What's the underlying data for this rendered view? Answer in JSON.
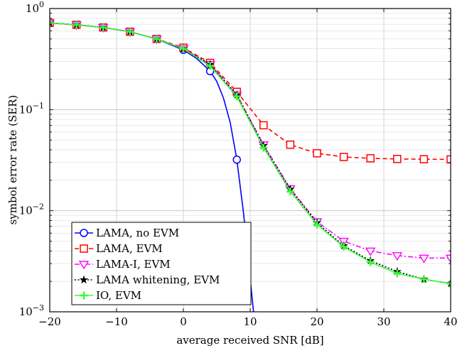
{
  "chart_data": {
    "type": "line",
    "title": "",
    "xlabel": "average received SNR [dB]",
    "ylabel": "symbol error rate (SER)",
    "xlim": [
      -20,
      40
    ],
    "ylim": [
      0.001,
      1
    ],
    "yscale": "log",
    "grid": true,
    "legend_position": "bottom-left",
    "x_ticks": [
      -20,
      -10,
      0,
      10,
      20,
      30,
      40
    ],
    "x_tick_labels": [
      "−20",
      "−10",
      "0",
      "10",
      "20",
      "30",
      "40"
    ],
    "y_ticks": [
      0.001,
      0.01,
      0.1,
      1
    ],
    "y_tick_labels": [
      {
        "base": "10",
        "exp": "−3"
      },
      {
        "base": "10",
        "exp": "−2"
      },
      {
        "base": "10",
        "exp": "−1"
      },
      {
        "base": "10",
        "exp": "0"
      }
    ],
    "series": [
      {
        "name": "LAMA, no EVM",
        "color": "#0000ff",
        "line": "solid",
        "marker": "circle",
        "line_x": [
          -20,
          -16,
          -12,
          -8,
          -4,
          0,
          2,
          4,
          5,
          6,
          7,
          8,
          9,
          10,
          10.5
        ],
        "line_y": [
          0.72,
          0.69,
          0.65,
          0.59,
          0.5,
          0.39,
          0.32,
          0.24,
          0.19,
          0.13,
          0.075,
          0.032,
          0.0095,
          0.0021,
          0.001
        ],
        "marker_x": [
          -20,
          -16,
          -12,
          -8,
          -4,
          0,
          4,
          8
        ],
        "marker_y": [
          0.72,
          0.69,
          0.65,
          0.59,
          0.5,
          0.39,
          0.24,
          0.032
        ]
      },
      {
        "name": "LAMA, EVM",
        "color": "#ff0000",
        "line": "dashed",
        "marker": "square",
        "line_x": [
          -20,
          -16,
          -12,
          -8,
          -4,
          0,
          4,
          8,
          12,
          16,
          20,
          24,
          28,
          32,
          36,
          40
        ],
        "line_y": [
          0.72,
          0.69,
          0.65,
          0.59,
          0.5,
          0.41,
          0.29,
          0.15,
          0.07,
          0.045,
          0.037,
          0.034,
          0.033,
          0.0325,
          0.0323,
          0.0322
        ],
        "marker_x": [
          -20,
          -16,
          -12,
          -8,
          -4,
          0,
          4,
          8,
          12,
          16,
          20,
          24,
          28,
          32,
          36,
          40
        ],
        "marker_y": [
          0.72,
          0.69,
          0.65,
          0.59,
          0.5,
          0.41,
          0.29,
          0.15,
          0.07,
          0.045,
          0.037,
          0.034,
          0.033,
          0.0325,
          0.0323,
          0.0322
        ]
      },
      {
        "name": "LAMA-I, EVM",
        "color": "#ff00ff",
        "line": "dashdot",
        "marker": "triangle-down",
        "line_x": [
          -20,
          -16,
          -12,
          -8,
          -4,
          0,
          4,
          8,
          12,
          16,
          20,
          24,
          28,
          32,
          36,
          40
        ],
        "line_y": [
          0.72,
          0.69,
          0.65,
          0.59,
          0.5,
          0.4,
          0.28,
          0.14,
          0.045,
          0.0165,
          0.0078,
          0.005,
          0.004,
          0.0036,
          0.0034,
          0.0034
        ],
        "marker_x": [
          -20,
          -16,
          -12,
          -8,
          -4,
          0,
          4,
          8,
          12,
          16,
          20,
          24,
          28,
          32,
          36,
          40
        ],
        "marker_y": [
          0.72,
          0.69,
          0.65,
          0.59,
          0.5,
          0.4,
          0.28,
          0.14,
          0.045,
          0.0165,
          0.0078,
          0.005,
          0.004,
          0.0036,
          0.0034,
          0.0034
        ]
      },
      {
        "name": "LAMA whitening, EVM",
        "color": "#000000",
        "line": "dotted",
        "marker": "star",
        "line_x": [
          -20,
          -16,
          -12,
          -8,
          -4,
          0,
          4,
          8,
          12,
          16,
          20,
          24,
          28,
          32,
          36,
          40
        ],
        "line_y": [
          0.72,
          0.69,
          0.65,
          0.59,
          0.5,
          0.4,
          0.28,
          0.14,
          0.044,
          0.0163,
          0.0076,
          0.0045,
          0.0032,
          0.0025,
          0.0021,
          0.0019
        ],
        "marker_x": [
          -20,
          -16,
          -12,
          -8,
          -4,
          0,
          4,
          8,
          12,
          16,
          20,
          24,
          28,
          32,
          36,
          40
        ],
        "marker_y": [
          0.72,
          0.69,
          0.65,
          0.59,
          0.5,
          0.4,
          0.28,
          0.14,
          0.044,
          0.0163,
          0.0076,
          0.0045,
          0.0032,
          0.0025,
          0.0021,
          0.0019
        ]
      },
      {
        "name": "IO, EVM",
        "color": "#33ff33",
        "line": "solid",
        "marker": "plus",
        "line_x": [
          -20,
          -16,
          -12,
          -8,
          -4,
          0,
          4,
          8,
          12,
          16,
          20,
          24,
          28,
          32,
          36,
          40
        ],
        "line_y": [
          0.72,
          0.69,
          0.65,
          0.59,
          0.5,
          0.4,
          0.27,
          0.135,
          0.042,
          0.0155,
          0.0073,
          0.0044,
          0.0031,
          0.0024,
          0.0021,
          0.0019
        ],
        "marker_x": [
          -20,
          -16,
          -12,
          -8,
          -4,
          0,
          4,
          8,
          12,
          16,
          20,
          24,
          28,
          32,
          36,
          40
        ],
        "marker_y": [
          0.72,
          0.69,
          0.65,
          0.59,
          0.5,
          0.4,
          0.27,
          0.135,
          0.042,
          0.0155,
          0.0073,
          0.0044,
          0.0031,
          0.0024,
          0.0021,
          0.0019
        ]
      }
    ]
  }
}
